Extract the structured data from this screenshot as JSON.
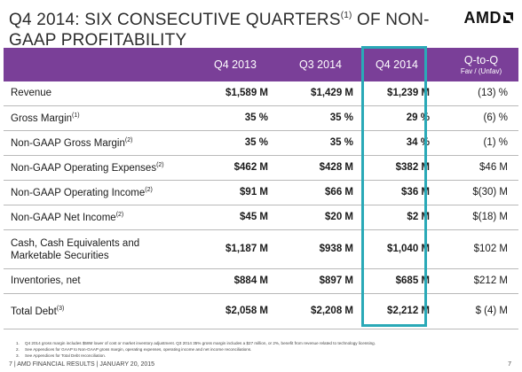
{
  "header": {
    "title": "Q4 2014: SIX CONSECUTIVE QUARTERS",
    "title_sup": "(1)",
    "title_rest": " OF NON-GAAP PROFITABILITY",
    "logo_text": "AMD"
  },
  "table": {
    "columns": [
      "Q4 2013",
      "Q3 2014",
      "Q4 2014",
      "Q-to-Q"
    ],
    "qq_sub": "Fav / (Unfav)",
    "rows": [
      {
        "label": "Revenue",
        "sup": "",
        "v1": "$1,589 M",
        "v2": "$1,429 M",
        "v3": "$1,239 M",
        "qq": "(13) %"
      },
      {
        "label": "Gross Margin",
        "sup": "(1)",
        "v1": "35 %",
        "v2": "35 %",
        "v3": "29 %",
        "qq": "(6) %"
      },
      {
        "label": "Non-GAAP Gross Margin",
        "sup": "(2)",
        "v1": "35 %",
        "v2": "35 %",
        "v3": "34 %",
        "qq": "(1) %"
      },
      {
        "label": "Non-GAAP Operating Expenses",
        "sup": "(2)",
        "v1": "$462 M",
        "v2": "$428 M",
        "v3": "$382 M",
        "qq": "$46 M"
      },
      {
        "label": "Non-GAAP Operating Income",
        "sup": "(2)",
        "v1": "$91 M",
        "v2": "$66 M",
        "v3": "$36 M",
        "qq": "$(30) M"
      },
      {
        "label": "Non-GAAP Net Income",
        "sup": "(2)",
        "v1": "$45 M",
        "v2": "$20 M",
        "v3": "$2 M",
        "qq": "$(18) M"
      },
      {
        "label": "Cash, Cash Equivalents and",
        "label2": "Marketable Securities",
        "sup": "",
        "v1": "$1,187 M",
        "v2": "$938 M",
        "v3": "$1,040 M",
        "qq": "$102 M"
      },
      {
        "label": "Inventories, net",
        "sup": "",
        "v1": "$884 M",
        "v2": "$897 M",
        "v3": "$685 M",
        "qq": "$212 M"
      },
      {
        "label": "Total Debt",
        "sup": "(3)",
        "v1": "$2,058 M",
        "v2": "$2,208 M",
        "v3": "$2,212 M",
        "qq": "$ (4) M"
      }
    ]
  },
  "footnotes": [
    {
      "num": "1.",
      "text": "Q4 2014 gross margin includes $58M lower of cost or market inventory adjustment. Q3 2014 35% gross margin includes a $27 million, or 2%, benefit from revenue related to technology licensing."
    },
    {
      "num": "2.",
      "text": "See Appendices for GAAP to Non-GAAP gross margin, operating expenses, operating income and net income reconciliations."
    },
    {
      "num": "3.",
      "text": "See Appendices for Total Debt reconciliation."
    }
  ],
  "footer": {
    "text": "7  | AMD FINANCIAL RESULTS  |  JANUARY 20, 2015",
    "page_number": "7"
  },
  "colors": {
    "header_bar": "#7a3f98",
    "highlight_box": "#2aa9b7"
  }
}
